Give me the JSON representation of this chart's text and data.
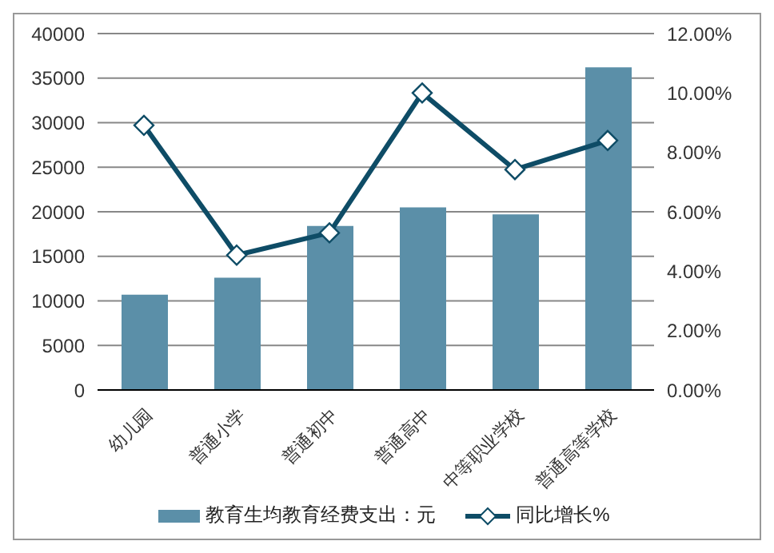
{
  "chart_data": {
    "type": "bar",
    "categories": [
      "幼儿园",
      "普通小学",
      "普通初中",
      "普通高中",
      "中等职业学校",
      "普通高等学校"
    ],
    "series": [
      {
        "name": "教育生均教育经费支出：元",
        "color": "#5b8fa8",
        "values": [
          10700,
          12600,
          18400,
          20500,
          19700,
          36200
        ]
      },
      {
        "name": "同比增长%",
        "type": "line",
        "axis": "y2",
        "color": "#0e4c66",
        "marker": "diamond",
        "values": [
          8.91,
          4.54,
          5.29,
          10.0,
          7.42,
          8.4
        ]
      }
    ],
    "ylim": [
      0,
      40000
    ],
    "yticks": [
      0,
      5000,
      10000,
      15000,
      20000,
      25000,
      30000,
      35000,
      40000
    ],
    "y2lim": [
      0,
      12
    ],
    "y2ticks": [
      {
        "value": 0,
        "label": "0.00%"
      },
      {
        "value": 2,
        "label": "2.00%"
      },
      {
        "value": 4,
        "label": "4.00%"
      },
      {
        "value": 6,
        "label": "6.00%"
      },
      {
        "value": 8,
        "label": "8.00%"
      },
      {
        "value": 10,
        "label": "10.00%"
      },
      {
        "value": 12,
        "label": "12.00%"
      }
    ],
    "grid": "y",
    "legend": "bottom"
  }
}
